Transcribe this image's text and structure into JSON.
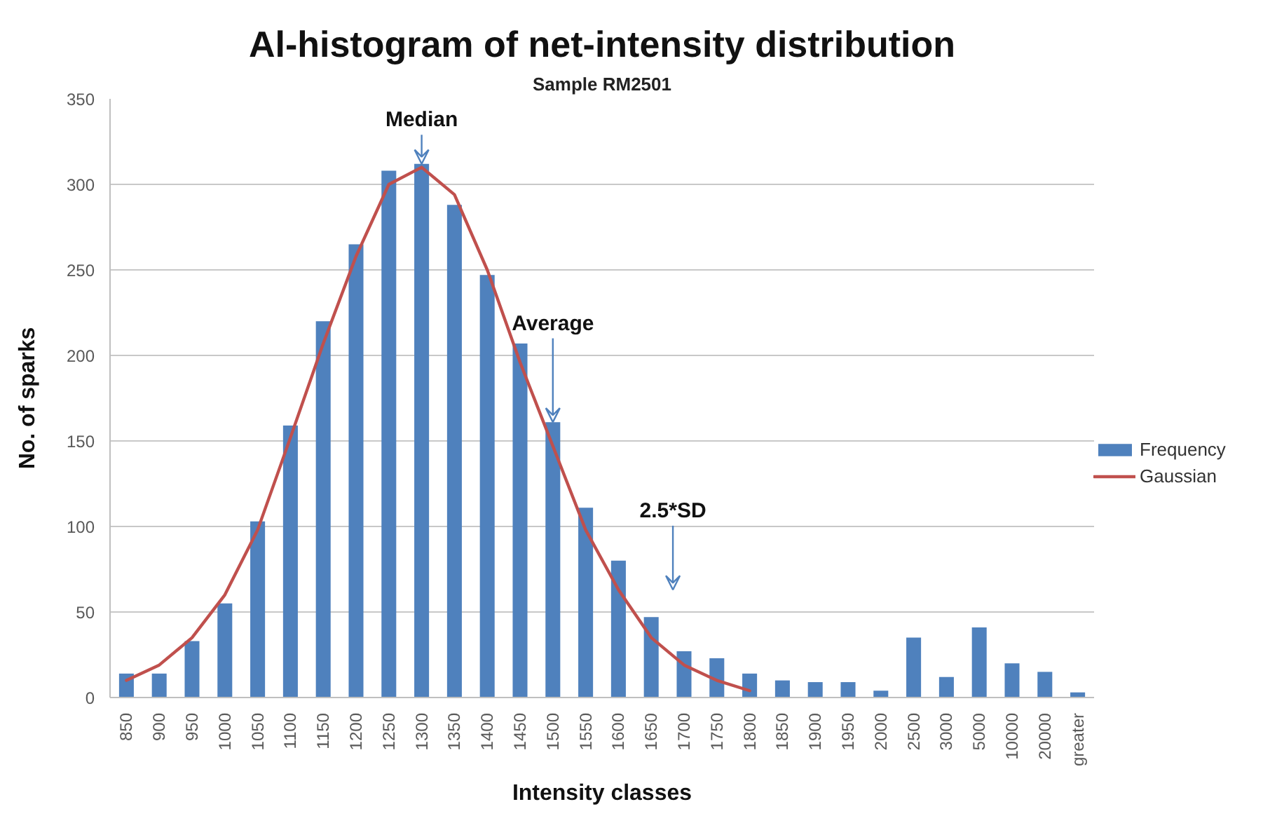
{
  "chart_data": {
    "type": "bar",
    "title": "Al-histogram of net-intensity distribution",
    "subtitle": "Sample RM2501",
    "xlabel": "Intensity classes",
    "ylabel": "No. of sparks",
    "categories": [
      "850",
      "900",
      "950",
      "1000",
      "1050",
      "1100",
      "1150",
      "1200",
      "1250",
      "1300",
      "1350",
      "1400",
      "1450",
      "1500",
      "1550",
      "1600",
      "1650",
      "1700",
      "1750",
      "1800",
      "1850",
      "1900",
      "1950",
      "2000",
      "2500",
      "3000",
      "5000",
      "10000",
      "20000",
      "greater"
    ],
    "series": [
      {
        "name": "Frequency",
        "type": "bar",
        "color": "#4f81bd",
        "values": [
          14,
          14,
          33,
          55,
          103,
          159,
          220,
          265,
          308,
          312,
          288,
          247,
          207,
          161,
          111,
          80,
          47,
          27,
          23,
          14,
          10,
          9,
          9,
          4,
          35,
          12,
          41,
          20,
          15,
          3
        ]
      },
      {
        "name": "Gaussian",
        "type": "line",
        "color": "#c0504d",
        "values": [
          10,
          19,
          35,
          60,
          98,
          152,
          207,
          258,
          300,
          310,
          294,
          250,
          196,
          147,
          98,
          63,
          35,
          19,
          10,
          4,
          null,
          null,
          null,
          null,
          null,
          null,
          null,
          null,
          null,
          null
        ]
      }
    ],
    "ylim": [
      0,
      350
    ],
    "yticks": [
      0,
      50,
      100,
      150,
      200,
      250,
      300,
      350
    ],
    "grid": "y",
    "legend": "right",
    "line_style": "solid",
    "annotations": [
      {
        "text": "Median",
        "x": "1300",
        "y": 312
      },
      {
        "text": "Average",
        "x": "1500",
        "y": 161
      },
      "2.5*SD"
    ]
  }
}
